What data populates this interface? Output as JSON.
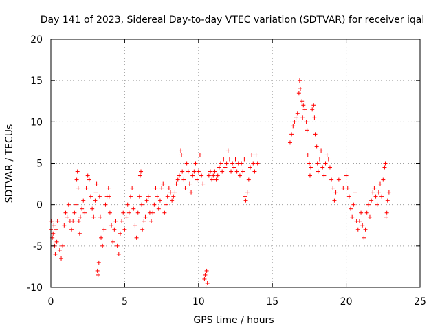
{
  "chart_data": {
    "type": "scatter",
    "title": "Day 141 of 2023, Sidereal Day-to-day VTEC variation (SDTVAR) for receiver iqal",
    "xlabel": "GPS time / hours",
    "ylabel": "SDTVAR / TECUs",
    "xlim": [
      0,
      25
    ],
    "ylim": [
      -10,
      20
    ],
    "xticks": [
      0,
      5,
      10,
      15,
      20,
      25
    ],
    "yticks": [
      -10,
      -5,
      0,
      5,
      10,
      15,
      20
    ],
    "xtick_labels": [
      "0",
      "5",
      "10",
      "15",
      "20",
      "25"
    ],
    "ytick_labels": [
      "-10",
      "-5",
      "0",
      "5",
      "10",
      "15",
      "20"
    ],
    "grid": true,
    "marker": "+",
    "color": "#ff0000",
    "series": [
      {
        "name": "SDTVAR",
        "points": [
          [
            0.0,
            -3.0
          ],
          [
            0.05,
            -2.0
          ],
          [
            0.1,
            -4.0
          ],
          [
            0.15,
            -3.5
          ],
          [
            0.2,
            -2.5
          ],
          [
            0.25,
            -5.0
          ],
          [
            0.3,
            -6.0
          ],
          [
            0.35,
            -3.0
          ],
          [
            0.4,
            -4.5
          ],
          [
            0.45,
            -2.0
          ],
          [
            0.6,
            -5.5
          ],
          [
            0.7,
            -6.5
          ],
          [
            0.8,
            -5.0
          ],
          [
            0.9,
            -2.5
          ],
          [
            1.0,
            -1.0
          ],
          [
            1.1,
            -1.5
          ],
          [
            1.2,
            0.0
          ],
          [
            1.3,
            -2.0
          ],
          [
            1.4,
            -3.0
          ],
          [
            1.5,
            -2.0
          ],
          [
            1.6,
            -1.0
          ],
          [
            1.7,
            0.0
          ],
          [
            1.75,
            3.0
          ],
          [
            1.8,
            4.0
          ],
          [
            1.85,
            2.0
          ],
          [
            1.9,
            -2.0
          ],
          [
            1.95,
            -3.5
          ],
          [
            2.0,
            -1.5
          ],
          [
            2.1,
            -0.5
          ],
          [
            2.2,
            0.5
          ],
          [
            2.3,
            -1.0
          ],
          [
            2.4,
            2.0
          ],
          [
            2.5,
            3.5
          ],
          [
            2.6,
            3.0
          ],
          [
            2.7,
            1.0
          ],
          [
            2.8,
            -0.5
          ],
          [
            2.9,
            -1.5
          ],
          [
            3.0,
            0.5
          ],
          [
            3.05,
            1.5
          ],
          [
            3.1,
            2.5
          ],
          [
            3.15,
            -8.0
          ],
          [
            3.2,
            -8.5
          ],
          [
            3.25,
            -7.0
          ],
          [
            3.3,
            1.0
          ],
          [
            3.35,
            -1.5
          ],
          [
            3.4,
            -4.0
          ],
          [
            3.5,
            -5.0
          ],
          [
            3.6,
            -3.0
          ],
          [
            3.7,
            0.0
          ],
          [
            3.8,
            1.0
          ],
          [
            3.9,
            2.0
          ],
          [
            3.95,
            1.0
          ],
          [
            4.0,
            -1.0
          ],
          [
            4.1,
            -2.5
          ],
          [
            4.2,
            -4.5
          ],
          [
            4.3,
            -3.0
          ],
          [
            4.4,
            -2.0
          ],
          [
            4.5,
            -5.0
          ],
          [
            4.6,
            -6.0
          ],
          [
            4.7,
            -3.5
          ],
          [
            4.8,
            -2.0
          ],
          [
            4.9,
            -1.0
          ],
          [
            5.0,
            -3.0
          ],
          [
            5.1,
            -1.5
          ],
          [
            5.2,
            0.0
          ],
          [
            5.3,
            -1.0
          ],
          [
            5.4,
            1.0
          ],
          [
            5.5,
            2.0
          ],
          [
            5.6,
            -0.5
          ],
          [
            5.7,
            -2.5
          ],
          [
            5.8,
            -4.0
          ],
          [
            5.9,
            -1.0
          ],
          [
            6.0,
            1.0
          ],
          [
            6.05,
            3.5
          ],
          [
            6.1,
            4.0
          ],
          [
            6.15,
            0.0
          ],
          [
            6.2,
            -3.0
          ],
          [
            6.3,
            -2.0
          ],
          [
            6.4,
            -1.5
          ],
          [
            6.5,
            0.5
          ],
          [
            6.6,
            1.0
          ],
          [
            6.7,
            -1.0
          ],
          [
            6.8,
            -2.0
          ],
          [
            6.9,
            -1.0
          ],
          [
            7.0,
            0.0
          ],
          [
            7.1,
            2.0
          ],
          [
            7.2,
            1.0
          ],
          [
            7.3,
            -0.5
          ],
          [
            7.4,
            0.5
          ],
          [
            7.5,
            2.0
          ],
          [
            7.6,
            2.5
          ],
          [
            7.7,
            -1.0
          ],
          [
            7.8,
            0.0
          ],
          [
            7.9,
            1.0
          ],
          [
            8.0,
            2.0
          ],
          [
            8.1,
            1.5
          ],
          [
            8.2,
            0.5
          ],
          [
            8.3,
            1.0
          ],
          [
            8.4,
            1.5
          ],
          [
            8.5,
            2.5
          ],
          [
            8.6,
            3.0
          ],
          [
            8.7,
            3.5
          ],
          [
            8.8,
            6.5
          ],
          [
            8.85,
            6.0
          ],
          [
            8.9,
            4.0
          ],
          [
            9.0,
            3.0
          ],
          [
            9.1,
            2.0
          ],
          [
            9.2,
            5.0
          ],
          [
            9.3,
            4.0
          ],
          [
            9.4,
            2.5
          ],
          [
            9.5,
            1.5
          ],
          [
            9.6,
            3.5
          ],
          [
            9.7,
            4.0
          ],
          [
            9.8,
            5.0
          ],
          [
            9.9,
            3.0
          ],
          [
            10.0,
            4.0
          ],
          [
            10.1,
            6.0
          ],
          [
            10.2,
            3.5
          ],
          [
            10.3,
            2.5
          ],
          [
            10.4,
            -9.0
          ],
          [
            10.45,
            -8.5
          ],
          [
            10.5,
            -10.0
          ],
          [
            10.55,
            -8.0
          ],
          [
            10.6,
            -9.5
          ],
          [
            10.7,
            3.5
          ],
          [
            10.8,
            4.0
          ],
          [
            10.9,
            3.0
          ],
          [
            11.0,
            3.5
          ],
          [
            11.1,
            4.0
          ],
          [
            11.2,
            3.0
          ],
          [
            11.3,
            3.5
          ],
          [
            11.4,
            4.5
          ],
          [
            11.5,
            5.0
          ],
          [
            11.6,
            4.0
          ],
          [
            11.7,
            5.5
          ],
          [
            11.8,
            4.5
          ],
          [
            11.9,
            5.0
          ],
          [
            12.0,
            6.5
          ],
          [
            12.1,
            5.5
          ],
          [
            12.2,
            4.0
          ],
          [
            12.3,
            5.0
          ],
          [
            12.4,
            4.5
          ],
          [
            12.5,
            5.5
          ],
          [
            12.6,
            4.0
          ],
          [
            12.7,
            5.0
          ],
          [
            12.8,
            3.5
          ],
          [
            12.9,
            5.0
          ],
          [
            13.0,
            4.0
          ],
          [
            13.1,
            5.5
          ],
          [
            13.15,
            1.0
          ],
          [
            13.2,
            0.5
          ],
          [
            13.3,
            1.5
          ],
          [
            13.4,
            3.0
          ],
          [
            13.5,
            4.5
          ],
          [
            13.6,
            6.0
          ],
          [
            13.7,
            5.0
          ],
          [
            13.8,
            4.0
          ],
          [
            13.9,
            6.0
          ],
          [
            14.0,
            5.0
          ],
          [
            16.2,
            7.5
          ],
          [
            16.3,
            8.5
          ],
          [
            16.4,
            9.5
          ],
          [
            16.5,
            10.0
          ],
          [
            16.6,
            10.5
          ],
          [
            16.7,
            11.0
          ],
          [
            16.8,
            13.5
          ],
          [
            16.85,
            15.0
          ],
          [
            16.9,
            14.0
          ],
          [
            17.0,
            12.5
          ],
          [
            17.05,
            10.5
          ],
          [
            17.1,
            12.0
          ],
          [
            17.2,
            11.5
          ],
          [
            17.3,
            10.0
          ],
          [
            17.35,
            9.0
          ],
          [
            17.4,
            6.0
          ],
          [
            17.5,
            5.0
          ],
          [
            17.55,
            3.5
          ],
          [
            17.6,
            4.5
          ],
          [
            17.7,
            11.5
          ],
          [
            17.8,
            12.0
          ],
          [
            17.85,
            10.5
          ],
          [
            17.9,
            8.5
          ],
          [
            18.0,
            7.0
          ],
          [
            18.05,
            5.0
          ],
          [
            18.1,
            4.0
          ],
          [
            18.2,
            5.5
          ],
          [
            18.3,
            6.5
          ],
          [
            18.4,
            4.5
          ],
          [
            18.5,
            3.5
          ],
          [
            18.6,
            5.0
          ],
          [
            18.7,
            6.0
          ],
          [
            18.8,
            5.5
          ],
          [
            18.9,
            4.5
          ],
          [
            19.0,
            3.0
          ],
          [
            19.1,
            2.0
          ],
          [
            19.2,
            0.5
          ],
          [
            19.3,
            1.5
          ],
          [
            19.5,
            3.0
          ],
          [
            19.8,
            2.0
          ],
          [
            20.0,
            3.5
          ],
          [
            20.1,
            2.0
          ],
          [
            20.2,
            1.0
          ],
          [
            20.3,
            -0.5
          ],
          [
            20.4,
            -1.5
          ],
          [
            20.5,
            0.0
          ],
          [
            20.6,
            1.5
          ],
          [
            20.7,
            -2.0
          ],
          [
            20.8,
            -3.0
          ],
          [
            20.9,
            -2.0
          ],
          [
            21.0,
            -1.0
          ],
          [
            21.1,
            -2.5
          ],
          [
            21.2,
            -4.0
          ],
          [
            21.3,
            -3.0
          ],
          [
            21.4,
            -1.0
          ],
          [
            21.5,
            0.0
          ],
          [
            21.6,
            -1.5
          ],
          [
            21.7,
            0.5
          ],
          [
            21.8,
            1.5
          ],
          [
            21.9,
            2.0
          ],
          [
            22.0,
            1.0
          ],
          [
            22.1,
            0.0
          ],
          [
            22.2,
            1.5
          ],
          [
            22.3,
            2.5
          ],
          [
            22.4,
            1.0
          ],
          [
            22.5,
            3.0
          ],
          [
            22.6,
            4.5
          ],
          [
            22.65,
            5.0
          ],
          [
            22.7,
            -1.5
          ],
          [
            22.75,
            -1.0
          ],
          [
            22.8,
            0.5
          ],
          [
            22.9,
            1.5
          ]
        ]
      }
    ]
  }
}
